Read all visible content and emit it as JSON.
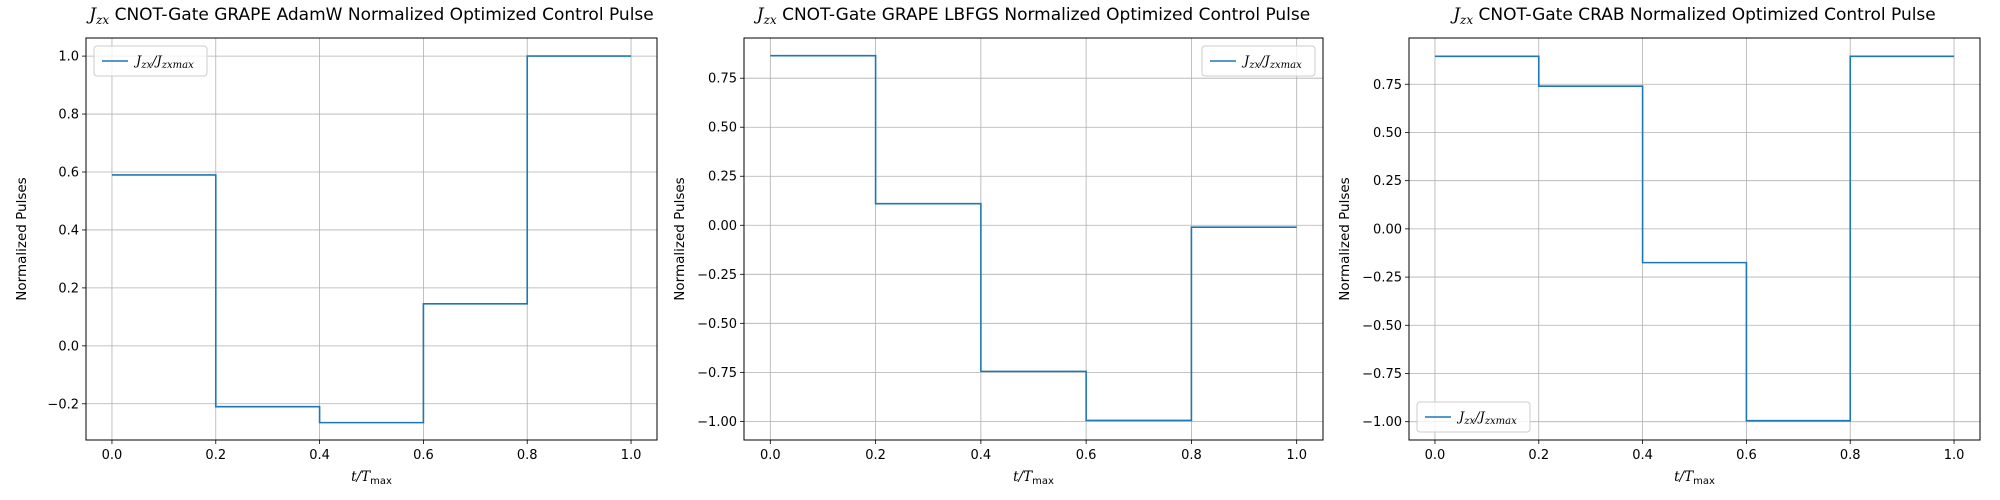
{
  "chart_data": [
    {
      "type": "line",
      "step": "post",
      "title_math": "J",
      "title_sub": "zx",
      "title": " CNOT-Gate GRAPE AdamW Normalized Optimized Control Pulse",
      "xlabel": "t/T",
      "xlabel_sub": "max",
      "ylabel": "Normalized Pulses",
      "xlim": [
        -0.05,
        1.05
      ],
      "ylim": [
        -0.325,
        1.0625
      ],
      "xticks": [
        "0.0",
        "0.2",
        "0.4",
        "0.6",
        "0.8",
        "1.0"
      ],
      "yticks": [
        "−0.2",
        "0.0",
        "0.2",
        "0.4",
        "0.6",
        "0.8",
        "1.0"
      ],
      "grid": true,
      "legend_placement": "upper-left",
      "series": [
        {
          "name": "J",
          "name_sub": "zx",
          "name_mid": "/J",
          "name_sub2": "zxmax",
          "color": "#1f77b4",
          "x": [
            0.0,
            0.2,
            0.4,
            0.6,
            0.8,
            1.0
          ],
          "values": [
            0.59,
            -0.21,
            -0.265,
            0.145,
            1.0,
            1.0
          ]
        }
      ]
    },
    {
      "type": "line",
      "step": "post",
      "title_math": "J",
      "title_sub": "zx",
      "title": " CNOT-Gate GRAPE LBFGS Normalized Optimized Control Pulse",
      "xlabel": "t/T",
      "xlabel_sub": "max",
      "ylabel": "Normalized Pulses",
      "xlim": [
        -0.05,
        1.05
      ],
      "ylim": [
        -1.095,
        0.955
      ],
      "xticks": [
        "0.0",
        "0.2",
        "0.4",
        "0.6",
        "0.8",
        "1.0"
      ],
      "yticks": [
        "−1.00",
        "−0.75",
        "−0.50",
        "−0.25",
        "0.00",
        "0.25",
        "0.50",
        "0.75"
      ],
      "grid": true,
      "legend_placement": "upper-right",
      "series": [
        {
          "name": "J",
          "name_sub": "zx",
          "name_mid": "/J",
          "name_sub2": "zxmax",
          "color": "#1f77b4",
          "x": [
            0.0,
            0.2,
            0.4,
            0.6,
            0.8,
            1.0
          ],
          "values": [
            0.865,
            0.11,
            -0.745,
            -0.995,
            -0.01,
            -0.01
          ]
        }
      ]
    },
    {
      "type": "line",
      "step": "post",
      "title_math": "J",
      "title_sub": "zx",
      "title": " CNOT-Gate CRAB Normalized Optimized Control Pulse",
      "xlabel": "t/T",
      "xlabel_sub": "max",
      "ylabel": "Normalized Pulses",
      "xlim": [
        -0.05,
        1.05
      ],
      "ylim": [
        -1.095,
        0.99
      ],
      "xticks": [
        "0.0",
        "0.2",
        "0.4",
        "0.6",
        "0.8",
        "1.0"
      ],
      "yticks": [
        "−1.00",
        "−0.75",
        "−0.50",
        "−0.25",
        "0.00",
        "0.25",
        "0.50",
        "0.75"
      ],
      "grid": true,
      "legend_placement": "lower-left",
      "series": [
        {
          "name": "J",
          "name_sub": "zx",
          "name_mid": "/J",
          "name_sub2": "zxmax",
          "color": "#1f77b4",
          "x": [
            0.0,
            0.2,
            0.4,
            0.6,
            0.8,
            1.0
          ],
          "values": [
            0.895,
            0.74,
            -0.175,
            -0.995,
            0.895,
            0.895
          ]
        }
      ]
    }
  ]
}
